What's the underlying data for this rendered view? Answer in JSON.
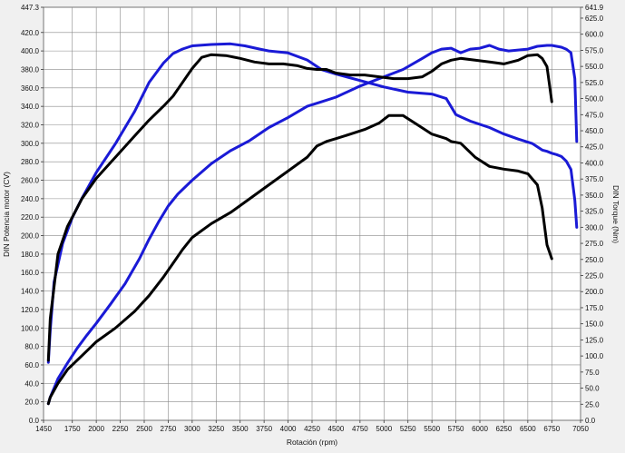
{
  "chart_data": {
    "type": "line",
    "title": "",
    "xlabel": "Rotación (rpm)",
    "ylabel_left": "DIN Potencia motor (CV)",
    "ylabel_right": "DIN Torque (Nm)",
    "xlim": [
      1450,
      7050
    ],
    "ylim_left": [
      0,
      447.3
    ],
    "ylim_right": [
      0,
      641.9
    ],
    "x_ticks": [
      "1450",
      "1750",
      "2000",
      "2250",
      "2500",
      "2750",
      "3000",
      "3250",
      "3500",
      "3750",
      "4000",
      "4250",
      "4500",
      "4750",
      "5000",
      "5250",
      "5500",
      "5750",
      "6000",
      "6250",
      "6500",
      "6750",
      "7050"
    ],
    "y_left_ticks": [
      "0.0",
      "20.0",
      "40.0",
      "60.0",
      "80.0",
      "100.0",
      "120.0",
      "140.0",
      "160.0",
      "180.0",
      "200.0",
      "220.0",
      "240.0",
      "260.0",
      "280.0",
      "300.0",
      "320.0",
      "340.0",
      "360.0",
      "380.0",
      "400.0",
      "420.0",
      "447.3"
    ],
    "y_right_ticks": [
      "0.0",
      "25.0",
      "50.0",
      "75.0",
      "100.0",
      "125.0",
      "150.0",
      "175.0",
      "200.0",
      "225.0",
      "250.0",
      "275.0",
      "300.0",
      "325.0",
      "350.0",
      "375.0",
      "400.0",
      "425.0",
      "450.0",
      "475.0",
      "500.0",
      "525.0",
      "550.0",
      "575.0",
      "600.0",
      "625.0",
      "641.9"
    ],
    "grid": true,
    "series": [
      {
        "color": "#1a1ad6",
        "axis": "right",
        "x": [
          1500,
          1520,
          1560,
          1650,
          1750,
          1850,
          2000,
          2200,
          2400,
          2550,
          2700,
          2800,
          2900,
          3000,
          3200,
          3400,
          3550,
          3700,
          3800,
          4000,
          4200,
          4350,
          4500,
          4750,
          5000,
          5250,
          5500,
          5650,
          5750,
          5900,
          6100,
          6250,
          6400,
          6550,
          6600,
          6650,
          6700,
          6750,
          6800,
          6850,
          6900,
          6950,
          6990,
          7010
        ],
        "y": [
          90,
          140,
          215,
          275,
          315,
          345,
          385,
          430,
          480,
          525,
          555,
          570,
          577,
          582,
          584,
          585,
          582,
          577,
          574,
          571,
          560,
          545,
          538,
          528,
          518,
          510,
          507,
          500,
          475,
          465,
          455,
          445,
          437,
          430,
          425,
          420,
          418,
          415,
          413,
          410,
          403,
          390,
          342,
          300
        ]
      },
      {
        "color": "#1a1ad6",
        "axis": "left",
        "x": [
          1500,
          1520,
          1600,
          1700,
          1800,
          1900,
          2000,
          2150,
          2300,
          2450,
          2550,
          2650,
          2750,
          2850,
          3000,
          3200,
          3400,
          3600,
          3800,
          4000,
          4200,
          4350,
          4500,
          4750,
          5000,
          5200,
          5400,
          5500,
          5600,
          5700,
          5800,
          5900,
          6000,
          6100,
          6200,
          6300,
          6400,
          6500,
          6600,
          6700,
          6750,
          6800,
          6850,
          6900,
          6950,
          6990,
          7010
        ],
        "y": [
          18,
          25,
          45,
          62,
          78,
          92,
          105,
          126,
          148,
          175,
          196,
          215,
          232,
          245,
          260,
          278,
          292,
          303,
          317,
          328,
          340,
          345,
          350,
          362,
          372,
          380,
          392,
          398,
          402,
          403,
          398,
          402,
          403,
          406,
          402,
          400,
          401,
          402,
          405,
          406,
          406,
          405,
          404,
          402,
          398,
          370,
          302
        ]
      },
      {
        "color": "#000000",
        "axis": "left",
        "x": [
          1500,
          1520,
          1600,
          1700,
          1850,
          2000,
          2200,
          2400,
          2550,
          2700,
          2800,
          2900,
          3000,
          3100,
          3200,
          3350,
          3500,
          3650,
          3800,
          3950,
          4100,
          4200,
          4300,
          4400,
          4500,
          4650,
          4800,
          4950,
          5100,
          5250,
          5400,
          5500,
          5600,
          5700,
          5800,
          5950,
          6100,
          6250,
          6400,
          6500,
          6600,
          6650,
          6700,
          6750
        ],
        "y": [
          65,
          110,
          180,
          210,
          240,
          262,
          285,
          308,
          325,
          340,
          351,
          366,
          381,
          393,
          396,
          395,
          392,
          388,
          386,
          386,
          384,
          381,
          380,
          380,
          376,
          374,
          374,
          372,
          370,
          370,
          372,
          378,
          386,
          390,
          392,
          390,
          388,
          386,
          390,
          395,
          396,
          392,
          383,
          345
        ]
      },
      {
        "color": "#000000",
        "axis": "left",
        "x": [
          1500,
          1520,
          1600,
          1700,
          1850,
          2000,
          2200,
          2400,
          2550,
          2700,
          2800,
          2900,
          3000,
          3200,
          3400,
          3600,
          3800,
          4000,
          4200,
          4300,
          4400,
          4500,
          4650,
          4800,
          4950,
          5050,
          5200,
          5350,
          5500,
          5650,
          5700,
          5800,
          5950,
          6100,
          6250,
          6400,
          6500,
          6600,
          6650,
          6700,
          6750
        ],
        "y": [
          18,
          25,
          40,
          55,
          70,
          85,
          100,
          118,
          135,
          155,
          170,
          185,
          198,
          213,
          225,
          240,
          255,
          270,
          285,
          297,
          302,
          305,
          310,
          315,
          322,
          330,
          330,
          320,
          310,
          305,
          302,
          300,
          285,
          275,
          272,
          270,
          267,
          255,
          230,
          190,
          175
        ]
      }
    ]
  }
}
